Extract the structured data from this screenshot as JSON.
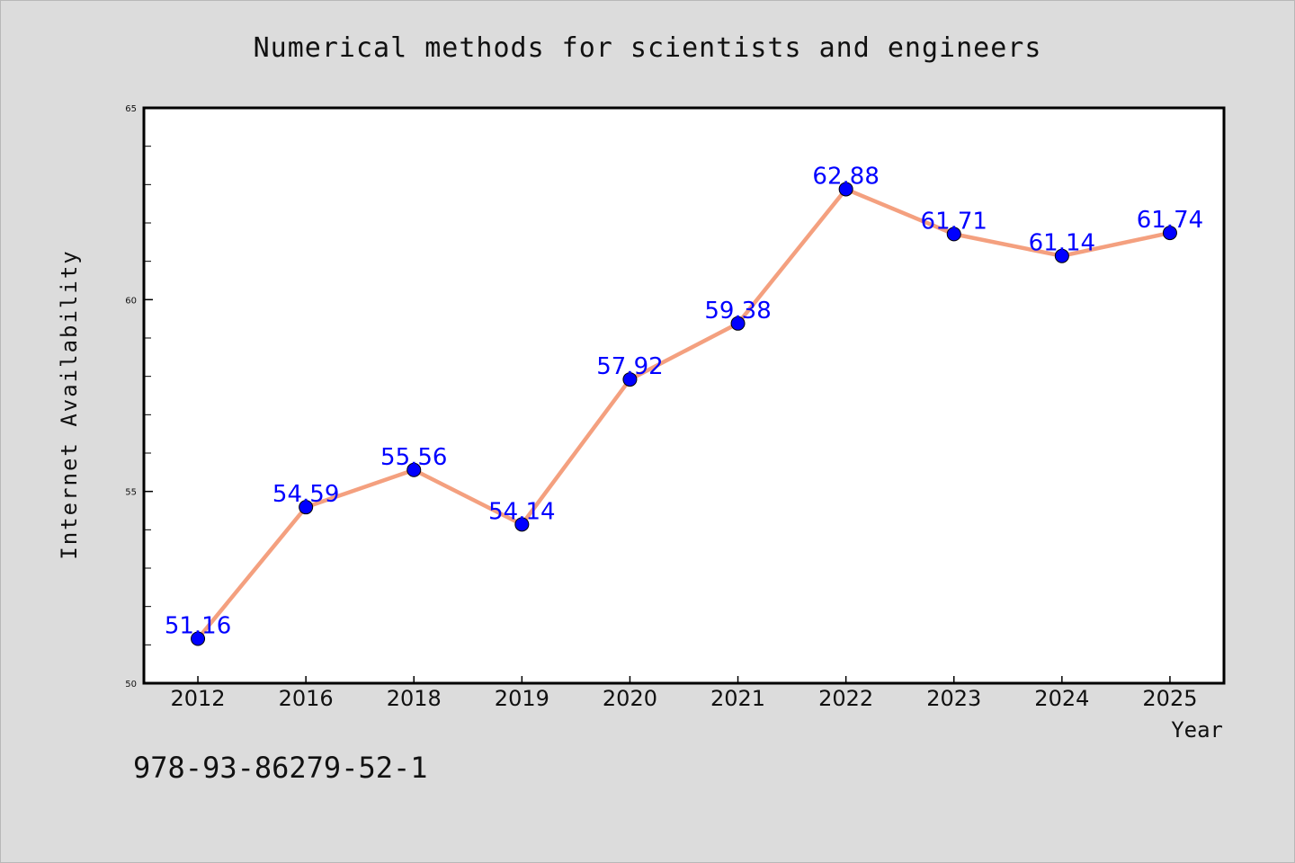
{
  "chart_data": {
    "type": "line",
    "title": "Numerical methods for scientists and engineers",
    "xlabel": "Year",
    "ylabel": "Internet Availability",
    "categories": [
      "2012",
      "2016",
      "2018",
      "2019",
      "2020",
      "2021",
      "2022",
      "2023",
      "2024",
      "2025"
    ],
    "values": [
      51.16,
      54.59,
      55.56,
      54.14,
      57.92,
      59.38,
      62.88,
      61.71,
      61.14,
      61.74
    ],
    "data_labels": [
      "51.16",
      "54.59",
      "55.56",
      "54.14",
      "57.92",
      "59.38",
      "62.88",
      "61.71",
      "61.14",
      "61.74"
    ],
    "ylim": [
      50,
      65
    ],
    "yticks": [
      "50",
      "55",
      "60",
      "65"
    ],
    "grid": false,
    "legend": "none",
    "colors": {
      "line": "#f4a07f",
      "marker": "#0000ff",
      "label": "#0000ff",
      "background": "#dcdcdc",
      "plot_background": "#ffffff"
    }
  },
  "footer": {
    "isbn": "978-93-86279-52-1"
  }
}
